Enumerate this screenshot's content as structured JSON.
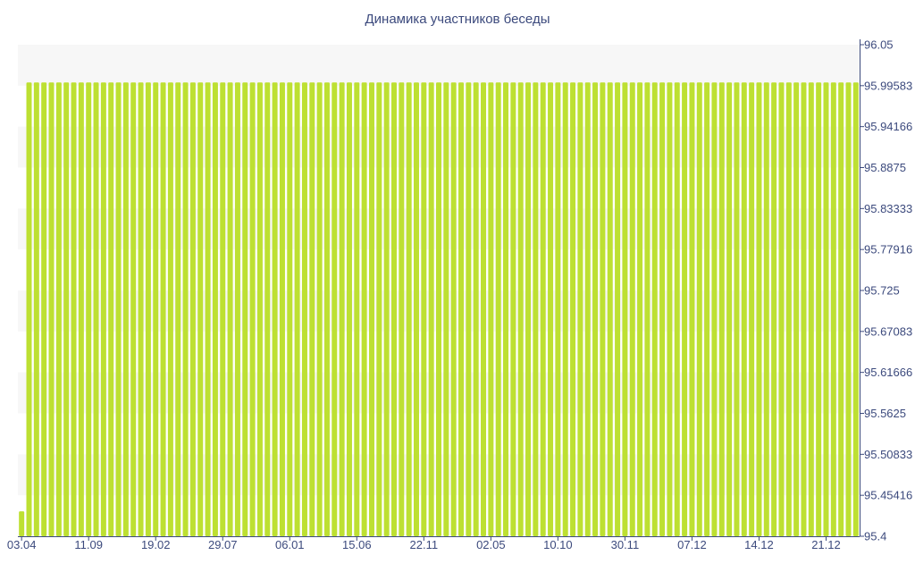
{
  "chart_data": {
    "type": "bar",
    "title": "Динамика участников беседы",
    "xlabel": "",
    "ylabel": "",
    "ylim": [
      95.4,
      96.05
    ],
    "ytick_labels": [
      "96.05",
      "95.99583",
      "95.94166",
      "95.8875",
      "95.83333",
      "95.77916",
      "95.725",
      "95.67083",
      "95.61666",
      "95.5625",
      "95.50833",
      "95.45416",
      "95.4"
    ],
    "xtick_labels": [
      "03.04",
      "11.09",
      "19.02",
      "29.07",
      "06.01",
      "15.06",
      "22.11",
      "02.05",
      "10.10",
      "30.11",
      "07.12",
      "14.12",
      "21.12"
    ],
    "xtick_every": 9,
    "bar_count": 113,
    "values": [
      95.433,
      96.0,
      96.0,
      96.0,
      96.0,
      96.0,
      96.0,
      96.0,
      96.0,
      96.0,
      96.0,
      96.0,
      96.0,
      96.0,
      96.0,
      96.0,
      96.0,
      96.0,
      96.0,
      96.0,
      96.0,
      96.0,
      96.0,
      96.0,
      96.0,
      96.0,
      96.0,
      96.0,
      96.0,
      96.0,
      96.0,
      96.0,
      96.0,
      96.0,
      96.0,
      96.0,
      96.0,
      96.0,
      96.0,
      96.0,
      96.0,
      96.0,
      96.0,
      96.0,
      96.0,
      96.0,
      96.0,
      96.0,
      96.0,
      96.0,
      96.0,
      96.0,
      96.0,
      96.0,
      96.0,
      96.0,
      96.0,
      96.0,
      96.0,
      96.0,
      96.0,
      96.0,
      96.0,
      96.0,
      96.0,
      96.0,
      96.0,
      96.0,
      96.0,
      96.0,
      96.0,
      96.0,
      96.0,
      96.0,
      96.0,
      96.0,
      96.0,
      96.0,
      96.0,
      96.0,
      96.0,
      96.0,
      96.0,
      96.0,
      96.0,
      96.0,
      96.0,
      96.0,
      96.0,
      96.0,
      96.0,
      96.0,
      96.0,
      96.0,
      96.0,
      96.0,
      96.0,
      96.0,
      96.0,
      96.0,
      96.0,
      96.0,
      96.0,
      96.0,
      96.0,
      96.0,
      96.0,
      96.0,
      96.0,
      96.0,
      96.0,
      96.0,
      96.0
    ],
    "grid": "alternating horizontal bands",
    "y_axis_position": "right",
    "legend": "none",
    "colors": {
      "bar": "#bde032",
      "band": "#f7f7f7",
      "axis": "#3c4a7d",
      "text": "#3c4a7d"
    }
  }
}
